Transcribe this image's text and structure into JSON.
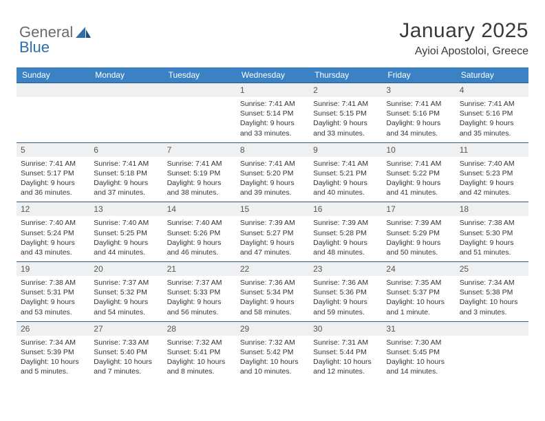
{
  "logo": {
    "text1": "General",
    "text2": "Blue",
    "color1": "#6a6a6a",
    "color2": "#2f6fa8"
  },
  "title": "January 2025",
  "location": "Ayioi Apostoloi, Greece",
  "header_bg": "#3b82c4",
  "header_fg": "#ffffff",
  "daybar_bg": "#eef0f2",
  "daybar_border": "#2a5b88",
  "body_fontsize": 10.5,
  "day_headers": [
    "Sunday",
    "Monday",
    "Tuesday",
    "Wednesday",
    "Thursday",
    "Friday",
    "Saturday"
  ],
  "weeks": [
    [
      {
        "n": "",
        "lines": []
      },
      {
        "n": "",
        "lines": []
      },
      {
        "n": "",
        "lines": []
      },
      {
        "n": "1",
        "lines": [
          "Sunrise: 7:41 AM",
          "Sunset: 5:14 PM",
          "Daylight: 9 hours and 33 minutes."
        ]
      },
      {
        "n": "2",
        "lines": [
          "Sunrise: 7:41 AM",
          "Sunset: 5:15 PM",
          "Daylight: 9 hours and 33 minutes."
        ]
      },
      {
        "n": "3",
        "lines": [
          "Sunrise: 7:41 AM",
          "Sunset: 5:16 PM",
          "Daylight: 9 hours and 34 minutes."
        ]
      },
      {
        "n": "4",
        "lines": [
          "Sunrise: 7:41 AM",
          "Sunset: 5:16 PM",
          "Daylight: 9 hours and 35 minutes."
        ]
      }
    ],
    [
      {
        "n": "5",
        "lines": [
          "Sunrise: 7:41 AM",
          "Sunset: 5:17 PM",
          "Daylight: 9 hours and 36 minutes."
        ]
      },
      {
        "n": "6",
        "lines": [
          "Sunrise: 7:41 AM",
          "Sunset: 5:18 PM",
          "Daylight: 9 hours and 37 minutes."
        ]
      },
      {
        "n": "7",
        "lines": [
          "Sunrise: 7:41 AM",
          "Sunset: 5:19 PM",
          "Daylight: 9 hours and 38 minutes."
        ]
      },
      {
        "n": "8",
        "lines": [
          "Sunrise: 7:41 AM",
          "Sunset: 5:20 PM",
          "Daylight: 9 hours and 39 minutes."
        ]
      },
      {
        "n": "9",
        "lines": [
          "Sunrise: 7:41 AM",
          "Sunset: 5:21 PM",
          "Daylight: 9 hours and 40 minutes."
        ]
      },
      {
        "n": "10",
        "lines": [
          "Sunrise: 7:41 AM",
          "Sunset: 5:22 PM",
          "Daylight: 9 hours and 41 minutes."
        ]
      },
      {
        "n": "11",
        "lines": [
          "Sunrise: 7:40 AM",
          "Sunset: 5:23 PM",
          "Daylight: 9 hours and 42 minutes."
        ]
      }
    ],
    [
      {
        "n": "12",
        "lines": [
          "Sunrise: 7:40 AM",
          "Sunset: 5:24 PM",
          "Daylight: 9 hours and 43 minutes."
        ]
      },
      {
        "n": "13",
        "lines": [
          "Sunrise: 7:40 AM",
          "Sunset: 5:25 PM",
          "Daylight: 9 hours and 44 minutes."
        ]
      },
      {
        "n": "14",
        "lines": [
          "Sunrise: 7:40 AM",
          "Sunset: 5:26 PM",
          "Daylight: 9 hours and 46 minutes."
        ]
      },
      {
        "n": "15",
        "lines": [
          "Sunrise: 7:39 AM",
          "Sunset: 5:27 PM",
          "Daylight: 9 hours and 47 minutes."
        ]
      },
      {
        "n": "16",
        "lines": [
          "Sunrise: 7:39 AM",
          "Sunset: 5:28 PM",
          "Daylight: 9 hours and 48 minutes."
        ]
      },
      {
        "n": "17",
        "lines": [
          "Sunrise: 7:39 AM",
          "Sunset: 5:29 PM",
          "Daylight: 9 hours and 50 minutes."
        ]
      },
      {
        "n": "18",
        "lines": [
          "Sunrise: 7:38 AM",
          "Sunset: 5:30 PM",
          "Daylight: 9 hours and 51 minutes."
        ]
      }
    ],
    [
      {
        "n": "19",
        "lines": [
          "Sunrise: 7:38 AM",
          "Sunset: 5:31 PM",
          "Daylight: 9 hours and 53 minutes."
        ]
      },
      {
        "n": "20",
        "lines": [
          "Sunrise: 7:37 AM",
          "Sunset: 5:32 PM",
          "Daylight: 9 hours and 54 minutes."
        ]
      },
      {
        "n": "21",
        "lines": [
          "Sunrise: 7:37 AM",
          "Sunset: 5:33 PM",
          "Daylight: 9 hours and 56 minutes."
        ]
      },
      {
        "n": "22",
        "lines": [
          "Sunrise: 7:36 AM",
          "Sunset: 5:34 PM",
          "Daylight: 9 hours and 58 minutes."
        ]
      },
      {
        "n": "23",
        "lines": [
          "Sunrise: 7:36 AM",
          "Sunset: 5:36 PM",
          "Daylight: 9 hours and 59 minutes."
        ]
      },
      {
        "n": "24",
        "lines": [
          "Sunrise: 7:35 AM",
          "Sunset: 5:37 PM",
          "Daylight: 10 hours and 1 minute."
        ]
      },
      {
        "n": "25",
        "lines": [
          "Sunrise: 7:34 AM",
          "Sunset: 5:38 PM",
          "Daylight: 10 hours and 3 minutes."
        ]
      }
    ],
    [
      {
        "n": "26",
        "lines": [
          "Sunrise: 7:34 AM",
          "Sunset: 5:39 PM",
          "Daylight: 10 hours and 5 minutes."
        ]
      },
      {
        "n": "27",
        "lines": [
          "Sunrise: 7:33 AM",
          "Sunset: 5:40 PM",
          "Daylight: 10 hours and 7 minutes."
        ]
      },
      {
        "n": "28",
        "lines": [
          "Sunrise: 7:32 AM",
          "Sunset: 5:41 PM",
          "Daylight: 10 hours and 8 minutes."
        ]
      },
      {
        "n": "29",
        "lines": [
          "Sunrise: 7:32 AM",
          "Sunset: 5:42 PM",
          "Daylight: 10 hours and 10 minutes."
        ]
      },
      {
        "n": "30",
        "lines": [
          "Sunrise: 7:31 AM",
          "Sunset: 5:44 PM",
          "Daylight: 10 hours and 12 minutes."
        ]
      },
      {
        "n": "31",
        "lines": [
          "Sunrise: 7:30 AM",
          "Sunset: 5:45 PM",
          "Daylight: 10 hours and 14 minutes."
        ]
      },
      {
        "n": "",
        "lines": []
      }
    ]
  ]
}
